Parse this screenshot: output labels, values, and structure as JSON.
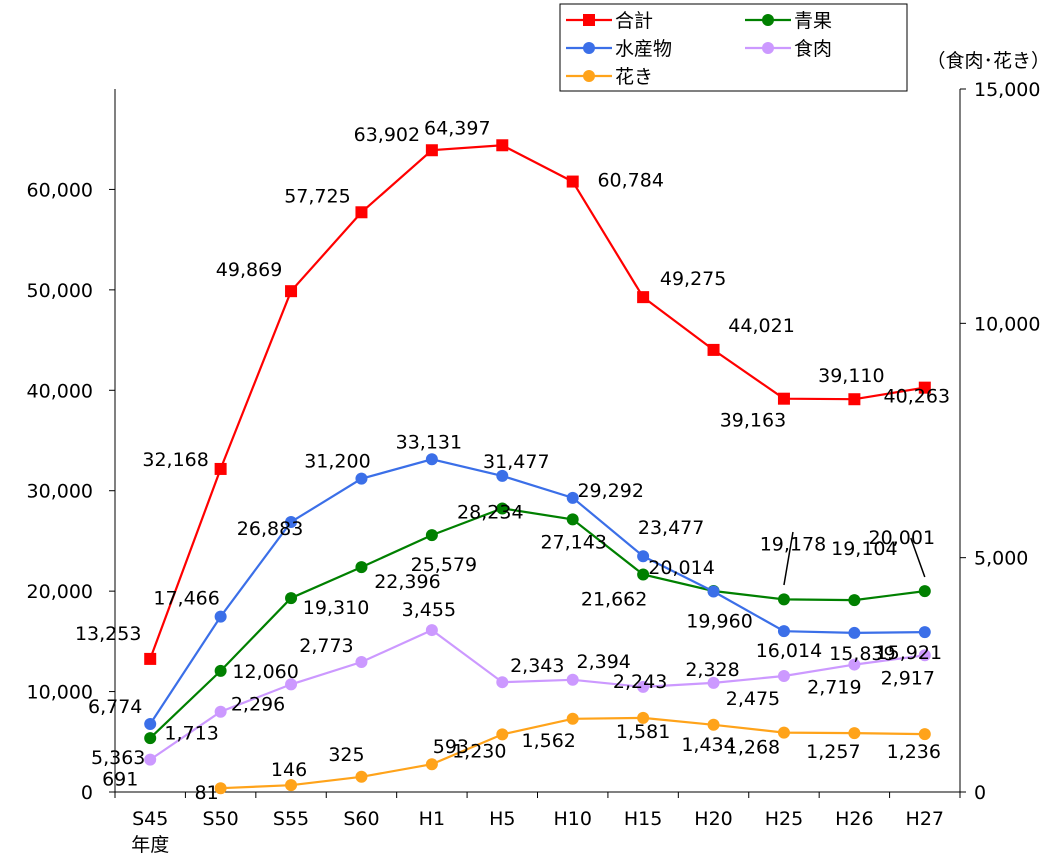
{
  "chart_data": {
    "type": "line",
    "categories": [
      "S45",
      "S50",
      "S55",
      "S60",
      "H1",
      "H5",
      "H10",
      "H15",
      "H20",
      "H25",
      "H26",
      "H27"
    ],
    "x_sublabel": "年度",
    "left_axis": {
      "ticks": [
        "0",
        "10,000",
        "20,000",
        "30,000",
        "40,000",
        "50,000",
        "60,000"
      ],
      "ylim": [
        0,
        70000
      ]
    },
    "right_axis": {
      "title": "（食肉･花き）",
      "ticks": [
        "0",
        "5,000",
        "10,000",
        "15,000"
      ],
      "ylim": [
        0,
        15000
      ]
    },
    "grid": false,
    "legend": "top-center",
    "series": [
      {
        "name": "合計",
        "axis": "left",
        "color": "#ff0000",
        "marker": "square",
        "values": [
          13253,
          32168,
          49869,
          57725,
          63902,
          64397,
          60784,
          49275,
          44021,
          39163,
          39110,
          40263
        ],
        "labels": [
          "13,253",
          "32,168",
          "49,869",
          "57,725",
          "63,902",
          "64,397",
          "60,784",
          "49,275",
          "44,021",
          "39,163",
          "39,110",
          "40,263"
        ]
      },
      {
        "name": "青果",
        "axis": "left",
        "color": "#008000",
        "marker": "circle",
        "values": [
          5363,
          12060,
          19310,
          22396,
          25579,
          28234,
          27143,
          21662,
          20014,
          19178,
          19104,
          20001
        ],
        "labels": [
          "5,363",
          "12,060",
          "19,310",
          "22,396",
          "25,579",
          "28,234",
          "27,143",
          "21,662",
          "20,014",
          "19,178",
          "19,104",
          "20,001"
        ]
      },
      {
        "name": "水産物",
        "axis": "left",
        "color": "#3b6fe8",
        "marker": "circle",
        "values": [
          6774,
          17466,
          26883,
          31200,
          33131,
          31477,
          29292,
          23477,
          19960,
          16014,
          15839,
          15921
        ],
        "labels": [
          "6,774",
          "17,466",
          "26,883",
          "31,200",
          "33,131",
          "31,477",
          "29,292",
          "23,477",
          "19,960",
          "16,014",
          "15,839",
          "15,921"
        ]
      },
      {
        "name": "食肉",
        "axis": "right",
        "color": "#cc99ff",
        "marker": "circle",
        "values": [
          691,
          1713,
          2296,
          2773,
          3455,
          2343,
          2394,
          2243,
          2328,
          2475,
          2719,
          2917
        ],
        "labels": [
          "691",
          "1,713",
          "2,296",
          "2,773",
          "3,455",
          "2,343",
          "2,394",
          "2,243",
          "2,328",
          "2,475",
          "2,719",
          "2,917"
        ]
      },
      {
        "name": "花き",
        "axis": "right",
        "color": "#ffa31a",
        "marker": "circle",
        "values": [
          null,
          81,
          146,
          325,
          593,
          1230,
          1562,
          1581,
          1434,
          1268,
          1257,
          1236
        ],
        "labels": [
          "",
          "81",
          "146",
          "325",
          "593",
          "1,230",
          "1,562",
          "1,581",
          "1,434",
          "1,268",
          "1,257",
          "1,236"
        ]
      }
    ]
  }
}
